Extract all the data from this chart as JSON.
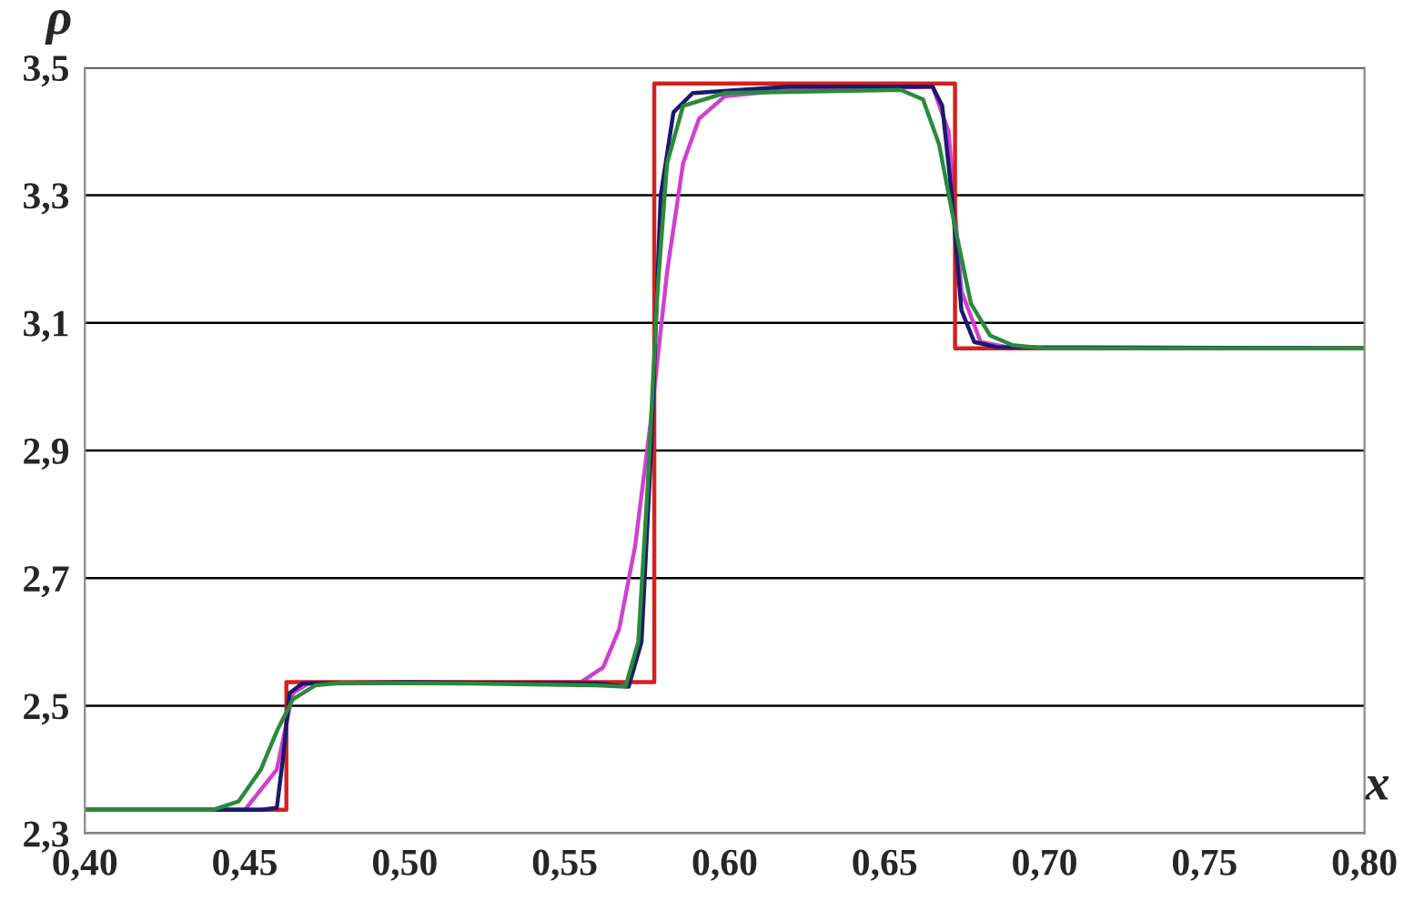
{
  "chart_data": {
    "type": "line",
    "xlabel": "x",
    "ylabel": "ρ",
    "xlim": [
      0.4,
      0.8
    ],
    "ylim": [
      2.3,
      3.5
    ],
    "xticks": [
      {
        "value": 0.4,
        "label": "0,40"
      },
      {
        "value": 0.45,
        "label": "0,45"
      },
      {
        "value": 0.5,
        "label": "0,50"
      },
      {
        "value": 0.55,
        "label": "0,55"
      },
      {
        "value": 0.6,
        "label": "0,60"
      },
      {
        "value": 0.65,
        "label": "0,65"
      },
      {
        "value": 0.7,
        "label": "0,70"
      },
      {
        "value": 0.75,
        "label": "0,75"
      },
      {
        "value": 0.8,
        "label": "0,80"
      }
    ],
    "yticks": [
      {
        "value": 2.3,
        "label": "2,3"
      },
      {
        "value": 2.5,
        "label": "2,5"
      },
      {
        "value": 2.7,
        "label": "2,7"
      },
      {
        "value": 2.9,
        "label": "2,9"
      },
      {
        "value": 3.1,
        "label": "3,1"
      },
      {
        "value": 3.3,
        "label": "3,3"
      },
      {
        "value": 3.5,
        "label": "3,5"
      }
    ],
    "grid": "y",
    "legend": false,
    "marker": "none",
    "line_style": "solid",
    "series": [
      {
        "color": "#d040d0",
        "x": [
          0.4,
          0.45,
          0.46,
          0.465,
          0.47,
          0.555,
          0.562,
          0.567,
          0.572,
          0.577,
          0.582,
          0.587,
          0.592,
          0.6,
          0.62,
          0.665,
          0.67,
          0.674,
          0.68,
          0.69,
          0.8
        ],
        "values": [
          2.337,
          2.337,
          2.4,
          2.52,
          2.535,
          2.537,
          2.56,
          2.62,
          2.75,
          2.95,
          3.18,
          3.35,
          3.42,
          3.455,
          3.465,
          3.47,
          3.4,
          3.15,
          3.07,
          3.06,
          3.06
        ]
      },
      {
        "type": "step",
        "color": "#d62020",
        "x": [
          0.4,
          0.463,
          0.578,
          0.672,
          0.8
        ],
        "values": [
          2.337,
          2.537,
          3.475,
          3.06,
          3.06
        ]
      },
      {
        "color": "#1a1a6e",
        "x": [
          0.4,
          0.455,
          0.46,
          0.462,
          0.464,
          0.468,
          0.5,
          0.56,
          0.57,
          0.574,
          0.577,
          0.58,
          0.584,
          0.59,
          0.62,
          0.665,
          0.668,
          0.671,
          0.674,
          0.678,
          0.685,
          0.8
        ],
        "values": [
          2.337,
          2.337,
          2.34,
          2.42,
          2.52,
          2.535,
          2.537,
          2.535,
          2.53,
          2.6,
          2.9,
          3.3,
          3.43,
          3.46,
          3.47,
          3.47,
          3.44,
          3.3,
          3.12,
          3.07,
          3.062,
          3.06
        ]
      },
      {
        "color": "#2a8a3a",
        "x": [
          0.4,
          0.44,
          0.448,
          0.455,
          0.46,
          0.465,
          0.472,
          0.48,
          0.52,
          0.56,
          0.569,
          0.573,
          0.576,
          0.579,
          0.582,
          0.587,
          0.6,
          0.655,
          0.662,
          0.667,
          0.672,
          0.677,
          0.683,
          0.69,
          0.7,
          0.8
        ],
        "values": [
          2.337,
          2.337,
          2.35,
          2.4,
          2.46,
          2.51,
          2.532,
          2.536,
          2.535,
          2.532,
          2.53,
          2.6,
          2.85,
          3.15,
          3.35,
          3.44,
          3.46,
          3.465,
          3.45,
          3.38,
          3.25,
          3.13,
          3.08,
          3.065,
          3.06,
          3.06
        ]
      }
    ]
  }
}
